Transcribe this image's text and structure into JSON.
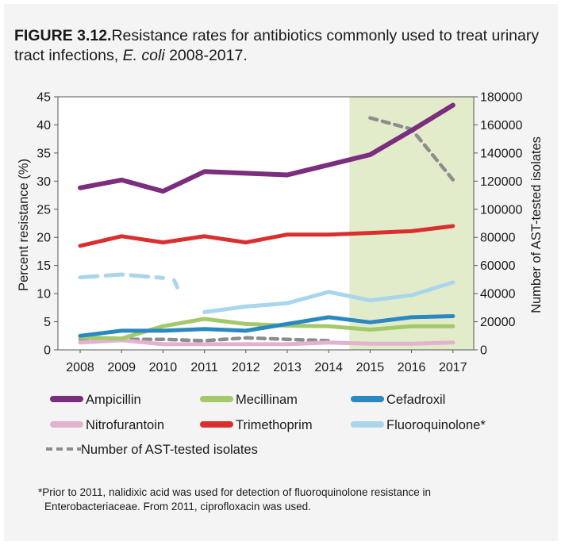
{
  "figure": {
    "label": "FIGURE 3.12.",
    "title_main": "Resistance rates for antibiotics commonly used to treat urinary tract infections, ",
    "title_italic": "E. coli",
    "title_end": " 2008-2017."
  },
  "footnote": {
    "line1": "*Prior to 2011, nalidixic acid was used for detection of fluoroquinolone resistance in",
    "line2": "Enterobacteriaceae. From 2011, ciprofloxacin was used."
  },
  "colors": {
    "Ampicillin": "#7b2d7e",
    "Mecillinam": "#a3c96a",
    "Cefadroxil": "#2b88c0",
    "Nitrofurantoin": "#e2b2cf",
    "Trimethoprim": "#d9302f",
    "Fluoroquinolone*": "#a9d6ea",
    "Number of AST-tested isolates": "#8d8d8d",
    "highlight_band": "#e3ecca",
    "plot_bg": "#ffffff",
    "axis": "#555555"
  },
  "chart_data": {
    "type": "line",
    "x": [
      2008,
      2009,
      2010,
      2011,
      2012,
      2013,
      2014,
      2015,
      2016,
      2017
    ],
    "ylabel": "Percent resistance (%)",
    "y2label": "Number of AST-tested isolates",
    "ylim": [
      0,
      45
    ],
    "y2lim": [
      0,
      180000
    ],
    "yticks": [
      0,
      5,
      10,
      15,
      20,
      25,
      30,
      35,
      40,
      45
    ],
    "y2ticks": [
      0,
      20000,
      40000,
      60000,
      80000,
      100000,
      120000,
      140000,
      160000,
      180000
    ],
    "highlight_range": [
      2014.5,
      2017.5
    ],
    "grid": false,
    "legend_position": "bottom",
    "series": [
      {
        "name": "Ampicillin",
        "axis": "left",
        "style": "solid",
        "values": [
          28.8,
          30.2,
          28.2,
          31.7,
          31.4,
          31.1,
          32.9,
          34.7,
          39.0,
          43.5
        ]
      },
      {
        "name": "Mecillinam",
        "axis": "left",
        "style": "solid",
        "values": [
          2.2,
          2.0,
          4.2,
          5.5,
          4.6,
          4.3,
          4.2,
          3.6,
          4.2,
          4.2
        ]
      },
      {
        "name": "Cefadroxil",
        "axis": "left",
        "style": "solid",
        "values": [
          2.5,
          3.4,
          3.4,
          3.7,
          3.4,
          4.6,
          5.8,
          4.9,
          5.8,
          6.0
        ]
      },
      {
        "name": "Nitrofurantoin",
        "axis": "left",
        "style": "solid",
        "values": [
          1.3,
          1.7,
          1.0,
          1.0,
          1.0,
          1.0,
          1.3,
          1.1,
          1.1,
          1.3
        ]
      },
      {
        "name": "Trimethoprim",
        "axis": "left",
        "style": "solid",
        "values": [
          18.5,
          20.2,
          19.1,
          20.2,
          19.1,
          20.5,
          20.5,
          20.8,
          21.1,
          22.0
        ]
      },
      {
        "name": "Fluoroquinolone*",
        "axis": "left",
        "style": "solid-break",
        "values": [
          12.9,
          13.4,
          12.8,
          6.7,
          7.7,
          8.3,
          10.3,
          8.8,
          9.7,
          12.0
        ],
        "break_after_index": 2
      },
      {
        "name": "Number of AST-tested isolates",
        "axis": "right",
        "style": "dashed",
        "values": [
          7500,
          7500,
          7500,
          6500,
          8500,
          7500,
          6500,
          null,
          null,
          null
        ],
        "values_segment2": [
          null,
          null,
          null,
          null,
          null,
          null,
          null,
          165000,
          157000,
          121000
        ]
      }
    ]
  }
}
